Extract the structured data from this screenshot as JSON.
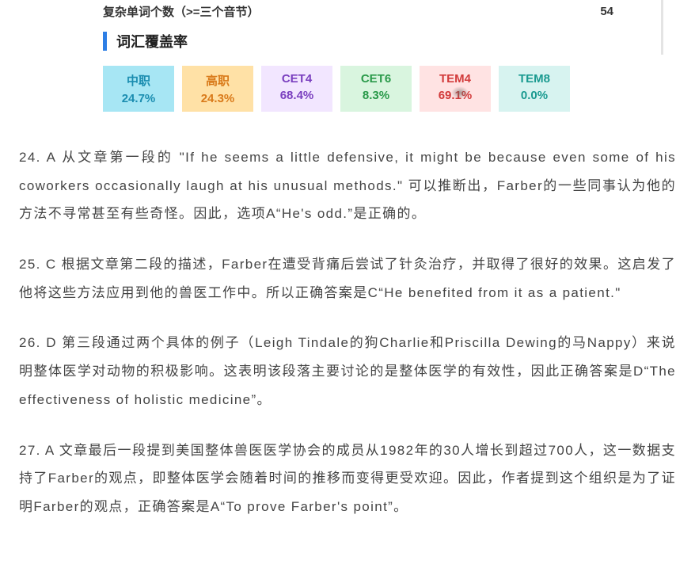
{
  "stat": {
    "label": "复杂单词个数（>=三个音节）",
    "value": "54"
  },
  "sectionTitle": "词汇覆盖率",
  "coverage": [
    {
      "label": "中职",
      "pct": "24.7%",
      "bg": "#a7e6f4",
      "labelColor": "#1b8db0",
      "pctColor": "#1b8db0"
    },
    {
      "label": "高职",
      "pct": "24.3%",
      "bg": "#ffe1a6",
      "labelColor": "#d97a1a",
      "pctColor": "#d97a1a"
    },
    {
      "label": "CET4",
      "pct": "68.4%",
      "bg": "#f2e6ff",
      "labelColor": "#7a3fbf",
      "pctColor": "#7a3fbf"
    },
    {
      "label": "CET6",
      "pct": "8.3%",
      "bg": "#d9f5df",
      "labelColor": "#2a9a4a",
      "pctColor": "#2a9a4a"
    },
    {
      "label": "TEM4",
      "pct": "69.1%",
      "bg": "#ffe3e3",
      "labelColor": "#d23b3b",
      "pctColor": "#d23b3b"
    },
    {
      "label": "TEM8",
      "pct": "0.0%",
      "bg": "#d7f3f0",
      "labelColor": "#1a9a90",
      "pctColor": "#1a9a90"
    }
  ],
  "answers": [
    "24. A 从文章第一段的 \"If he seems a little defensive, it might be because even some of his coworkers occasionally laugh at his unusual methods.\" 可以推断出，Farber的一些同事认为他的方法不寻常甚至有些奇怪。因此，选项A“He's odd.”是正确的。",
    "25. C 根据文章第二段的描述，Farber在遭受背痛后尝试了针灸治疗，并取得了很好的效果。这启发了他将这些方法应用到他的兽医工作中。所以正确答案是C“He benefited from it as a patient.\"",
    "26. D 第三段通过两个具体的例子（Leigh Tindale的狗Charlie和Priscilla Dewing的马Nappy）来说明整体医学对动物的积极影响。这表明该段落主要讨论的是整体医学的有效性，因此正确答案是D“The effectiveness of holistic medicine”。",
    "27. A 文章最后一段提到美国整体兽医医学协会的成员从1982年的30人增长到超过700人，这一数据支持了Farber的观点，即整体医学会随着时间的推移而变得更受欢迎。因此，作者提到这个组织是为了证明Farber的观点，正确答案是A“To prove Farber's point”。"
  ]
}
